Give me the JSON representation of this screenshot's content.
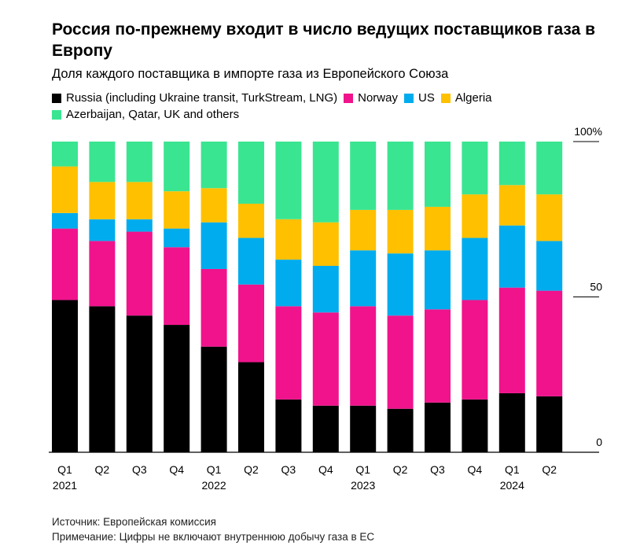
{
  "title": "Россия по-прежнему входит в число ведущих поставщиков газа в Европу",
  "subtitle": "Доля каждого поставщика в импорте газа из Европейского Союза",
  "footer": {
    "source": "Источник: Европейская комиссия",
    "note": "Примечание: Цифры не включают внутреннюю добычу газа в ЕС"
  },
  "chart_data": {
    "type": "bar",
    "stacked": true,
    "categories": [
      "Q1 2021",
      "Q2 2021",
      "Q3 2021",
      "Q4 2021",
      "Q1 2022",
      "Q2 2022",
      "Q3 2022",
      "Q4 2022",
      "Q1 2023",
      "Q2 2023",
      "Q3 2023",
      "Q4 2023",
      "Q1 2024",
      "Q2 2024"
    ],
    "tick_labels": [
      "Q1",
      "Q2",
      "Q3",
      "Q4",
      "Q1",
      "Q2",
      "Q3",
      "Q4",
      "Q1",
      "Q2",
      "Q3",
      "Q4",
      "Q1",
      "Q2"
    ],
    "year_labels": [
      {
        "index": 0,
        "label": "2021"
      },
      {
        "index": 4,
        "label": "2022"
      },
      {
        "index": 8,
        "label": "2023"
      },
      {
        "index": 12,
        "label": "2024"
      }
    ],
    "ylim": [
      0,
      100
    ],
    "yticks": [
      {
        "value": 0,
        "label": "0"
      },
      {
        "value": 50,
        "label": "50"
      },
      {
        "value": 100,
        "label": "100%"
      }
    ],
    "legend_position": "top",
    "series": [
      {
        "name": "Russia (including Ukraine transit, TurkStream, LNG)",
        "color": "#000000",
        "values": [
          49,
          47,
          44,
          41,
          34,
          29,
          17,
          15,
          15,
          14,
          16,
          17,
          19,
          18
        ]
      },
      {
        "name": "Norway",
        "color": "#f0138c",
        "values": [
          23,
          21,
          27,
          25,
          25,
          25,
          30,
          30,
          32,
          30,
          30,
          32,
          34,
          34
        ]
      },
      {
        "name": "US",
        "color": "#00aced",
        "values": [
          5,
          7,
          4,
          6,
          15,
          15,
          15,
          15,
          18,
          20,
          19,
          20,
          20,
          16
        ]
      },
      {
        "name": "Algeria",
        "color": "#ffc000",
        "values": [
          15,
          12,
          12,
          12,
          11,
          11,
          13,
          14,
          13,
          14,
          14,
          14,
          13,
          15
        ]
      },
      {
        "name": "Azerbaijan, Qatar, UK and others",
        "color": "#3ae591",
        "values": [
          8,
          13,
          13,
          16,
          15,
          20,
          25,
          26,
          22,
          22,
          21,
          17,
          14,
          17
        ]
      }
    ]
  }
}
